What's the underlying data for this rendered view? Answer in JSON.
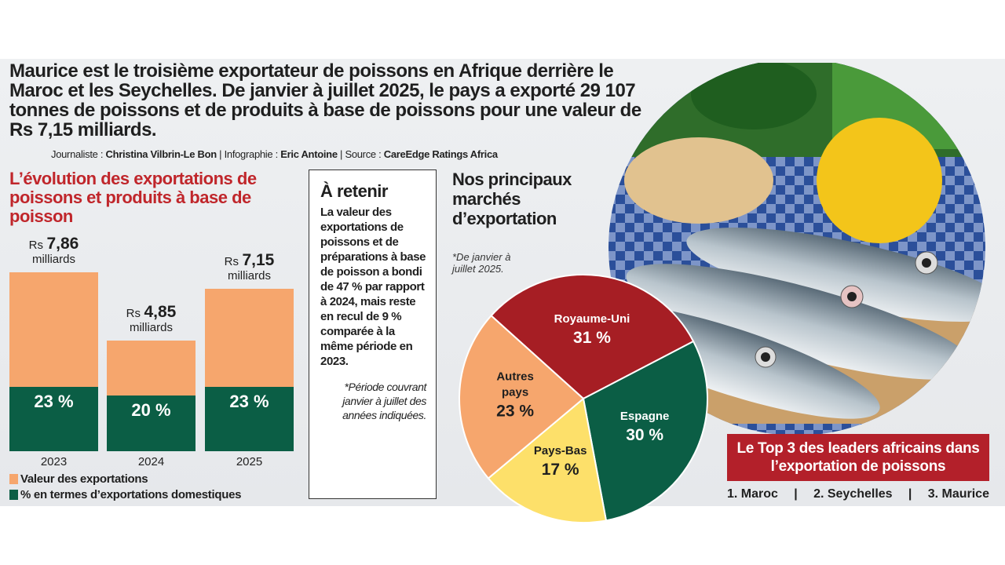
{
  "intro": "Maurice est le troisième exportateur de poissons en Afrique derrière le Maroc et les Seychelles. De janvier à juillet 2025, le pays a exporté 29 107 tonnes de poissons et de produits à base de poissons pour une valeur de Rs 7,15 milliards.",
  "credits": {
    "journalist_label": "Journaliste : ",
    "journalist": "Christina Vilbrin-Le Bon",
    "infographic_label": " | Infographie : ",
    "infographic": "Eric Antoine",
    "source_label": " | Source : ",
    "source": "CareEdge Ratings Africa"
  },
  "colors": {
    "orange": "#f6a66d",
    "green": "#0b5e45",
    "red": "#a61e24",
    "yellow": "#fde06a",
    "title_red": "#c0262b"
  },
  "chart_data": [
    {
      "type": "bar",
      "title": "L’évolution des exportations de poissons et produits à base de poisson",
      "categories": [
        "2023",
        "2024",
        "2025"
      ],
      "series": [
        {
          "name": "Valeur des exportations",
          "values": [
            7.86,
            4.85,
            7.15
          ],
          "color": "#f6a66d",
          "labels": [
            "7,86",
            "4,85",
            "7,15"
          ],
          "prefix": "Rs",
          "unit": "milliards"
        },
        {
          "name": "% en termes d’exportations domestiques",
          "values": [
            23,
            20,
            23
          ],
          "color": "#0b5e45",
          "labels": [
            "23 %",
            "20 %",
            "23 %"
          ]
        }
      ],
      "legend": "bottom-left",
      "grid": false
    },
    {
      "type": "pie",
      "title": "Nos principaux marchés d’exportation",
      "note": "*De janvier à juillet 2025.",
      "slices": [
        {
          "label": "Royaume-Uni",
          "value": 31,
          "display": "31 %",
          "color": "#a61e24",
          "text_color": "#ffffff"
        },
        {
          "label": "Espagne",
          "value": 30,
          "display": "30 %",
          "color": "#0b5e45",
          "text_color": "#ffffff"
        },
        {
          "label": "Pays-Bas",
          "value": 17,
          "display": "17 %",
          "color": "#fde06a",
          "text_color": "#1f1f1f"
        },
        {
          "label": "Autres pays",
          "value": 23,
          "display": "23 %",
          "color": "#f6a66d",
          "text_color": "#1f1f1f"
        }
      ]
    }
  ],
  "retenir": {
    "title": "À retenir",
    "body": "La valeur des exportations de poissons et de préparations à base de poisson a bondi de 47 % par rapport à 2024, mais reste en recul de 9 % comparée à la même période en 2023.",
    "note": "*Période couvrant janvier à juillet des années indiquées."
  },
  "top3": {
    "title": "Le Top 3 des leaders africains dans l’exportation de poissons",
    "items": [
      "1. Maroc",
      "|",
      "2. Seychelles",
      "|",
      "3. Maurice"
    ]
  }
}
